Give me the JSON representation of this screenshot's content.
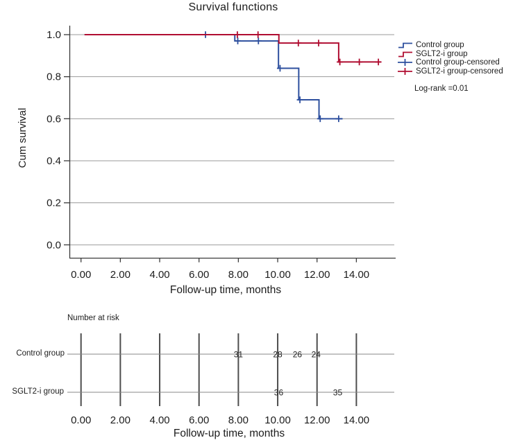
{
  "colors": {
    "control": "#2d4f9e",
    "sglt2": "#b00d31",
    "grid": "#999999",
    "axis": "#3a3a3a",
    "risk_tick_line": "#4d4d4d",
    "risk_row_line": "#878787",
    "text": "#1c1c1c"
  },
  "chart_data": {
    "type": "line",
    "subtype": "kaplan-meier-step",
    "title": "Survival functions",
    "xlabel": "Follow-up time, months",
    "ylabel": "Cum survival",
    "xlim": [
      -0.6,
      16.0
    ],
    "ylim": [
      0.0,
      1.0
    ],
    "grid": "horizontal",
    "legend_position": "right",
    "x_ticks": [
      {
        "t": 0,
        "label": "0.00"
      },
      {
        "t": 2,
        "label": "2.00"
      },
      {
        "t": 4,
        "label": "4.00"
      },
      {
        "t": 6,
        "label": "6.00"
      },
      {
        "t": 8,
        "label": "8.00"
      },
      {
        "t": 10,
        "label": "10.00"
      },
      {
        "t": 12,
        "label": "12.00"
      },
      {
        "t": 14,
        "label": "14.00"
      }
    ],
    "y_ticks": [
      {
        "v": 1.0,
        "label": "1.0"
      },
      {
        "v": 0.8,
        "label": "0.8"
      },
      {
        "v": 0.6,
        "label": "0.6"
      },
      {
        "v": 0.4,
        "label": "0.4"
      },
      {
        "v": 0.2,
        "label": "0.2"
      },
      {
        "v": 0.0,
        "label": "0.0"
      }
    ],
    "series": [
      {
        "name": "Control group",
        "color_key": "control",
        "steps": [
          [
            0.18,
            1.0
          ],
          [
            7.82,
            0.97
          ],
          [
            10.04,
            0.84
          ],
          [
            11.07,
            0.69
          ],
          [
            12.1,
            0.6
          ]
        ],
        "end": 13.3,
        "censored": [
          [
            6.33,
            1.0
          ],
          [
            7.97,
            0.97
          ],
          [
            9.02,
            0.97
          ],
          [
            10.12,
            0.84
          ],
          [
            11.13,
            0.69
          ],
          [
            12.16,
            0.6
          ],
          [
            13.1,
            0.6
          ]
        ]
      },
      {
        "name": "SGLT2-i group",
        "color_key": "sglt2",
        "steps": [
          [
            0.18,
            1.0
          ],
          [
            10.06,
            0.96
          ],
          [
            13.1,
            0.87
          ]
        ],
        "end": 15.25,
        "censored": [
          [
            7.95,
            1.0
          ],
          [
            9.0,
            1.0
          ],
          [
            11.05,
            0.96
          ],
          [
            12.08,
            0.96
          ],
          [
            13.16,
            0.87
          ],
          [
            14.15,
            0.87
          ],
          [
            15.12,
            0.87
          ]
        ]
      }
    ],
    "legend": [
      {
        "label": "Control group",
        "icon": "step",
        "color_key": "control"
      },
      {
        "label": "SGLT2-i group",
        "icon": "step",
        "color_key": "sglt2"
      },
      {
        "label": "Control group-censored",
        "icon": "plus",
        "color_key": "control"
      },
      {
        "label": "SGLT2-i group-censored",
        "icon": "plus",
        "color_key": "sglt2"
      }
    ],
    "annotation": "Log-rank =0.01",
    "risk_table": {
      "header": "Number at risk",
      "xlabel": "Follow-up time, months",
      "rows": [
        {
          "label": "Control group",
          "values": [
            {
              "t": 8,
              "n": "31"
            },
            {
              "t": 10,
              "n": "28"
            },
            {
              "t": 11,
              "n": "26"
            },
            {
              "t": 11.95,
              "n": "24"
            }
          ]
        },
        {
          "label": "SGLT2-i group",
          "values": [
            {
              "t": 10.05,
              "n": "36"
            },
            {
              "t": 13.05,
              "n": "35"
            }
          ]
        }
      ]
    }
  }
}
